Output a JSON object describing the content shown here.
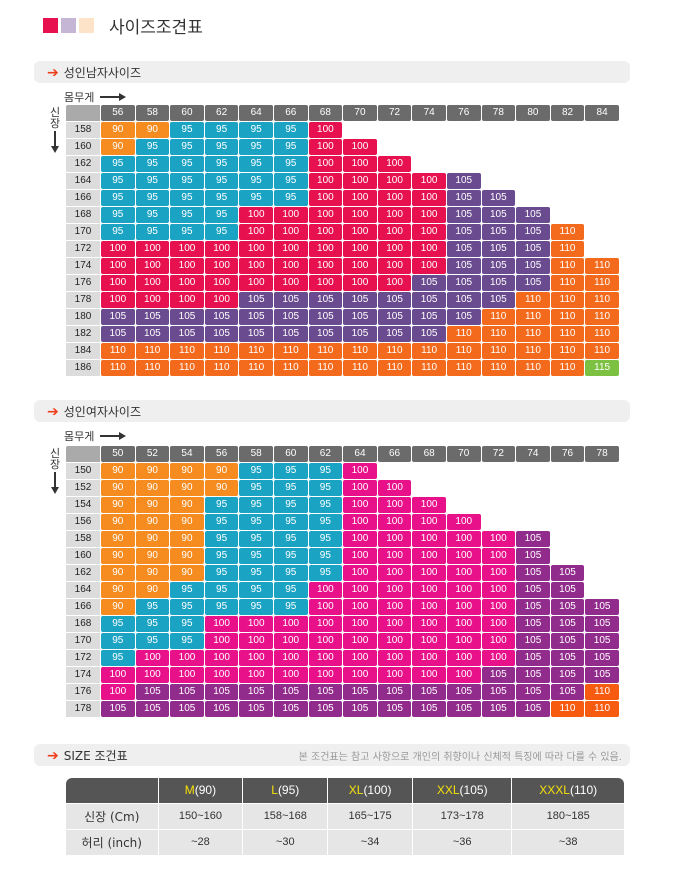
{
  "page_title": "사이즈조견표",
  "title_swatches": [
    "#e8114f",
    "#c4b6d4",
    "#fde3c8"
  ],
  "colors": {
    "90": "#f68b1f",
    "95": "#1ba3c4",
    "100_men": "#e8114f",
    "100_women": "#e8118a",
    "105_men": "#6a4b8f",
    "105_women": "#922c8c",
    "110_men": "#f46a1c",
    "110_women": "#f75b10",
    "115": "#7dc142",
    "header": "#6b6b6b",
    "label": "#dcdcdc",
    "arrow": "#ee3d19"
  },
  "weight_label": "몸무게",
  "height_label": [
    "신",
    "장"
  ],
  "men": {
    "section_title": "성인남자사이즈",
    "weights": [
      "56",
      "58",
      "60",
      "62",
      "64",
      "66",
      "68",
      "70",
      "72",
      "74",
      "76",
      "78",
      "80",
      "82",
      "84"
    ],
    "rows": [
      {
        "height": "158",
        "values": [
          "90",
          "90",
          "95",
          "95",
          "95",
          "95",
          "100"
        ]
      },
      {
        "height": "160",
        "values": [
          "90",
          "95",
          "95",
          "95",
          "95",
          "95",
          "100",
          "100"
        ]
      },
      {
        "height": "162",
        "values": [
          "95",
          "95",
          "95",
          "95",
          "95",
          "95",
          "100",
          "100",
          "100"
        ]
      },
      {
        "height": "164",
        "values": [
          "95",
          "95",
          "95",
          "95",
          "95",
          "95",
          "100",
          "100",
          "100",
          "100",
          "105"
        ]
      },
      {
        "height": "166",
        "values": [
          "95",
          "95",
          "95",
          "95",
          "95",
          "95",
          "100",
          "100",
          "100",
          "100",
          "105",
          "105"
        ]
      },
      {
        "height": "168",
        "values": [
          "95",
          "95",
          "95",
          "95",
          "100",
          "100",
          "100",
          "100",
          "100",
          "100",
          "105",
          "105",
          "105"
        ]
      },
      {
        "height": "170",
        "values": [
          "95",
          "95",
          "95",
          "95",
          "100",
          "100",
          "100",
          "100",
          "100",
          "100",
          "105",
          "105",
          "105",
          "110"
        ]
      },
      {
        "height": "172",
        "values": [
          "100",
          "100",
          "100",
          "100",
          "100",
          "100",
          "100",
          "100",
          "100",
          "100",
          "105",
          "105",
          "105",
          "110"
        ]
      },
      {
        "height": "174",
        "values": [
          "100",
          "100",
          "100",
          "100",
          "100",
          "100",
          "100",
          "100",
          "100",
          "100",
          "105",
          "105",
          "105",
          "110",
          "110"
        ]
      },
      {
        "height": "176",
        "values": [
          "100",
          "100",
          "100",
          "100",
          "100",
          "100",
          "100",
          "100",
          "100",
          "105",
          "105",
          "105",
          "105",
          "110",
          "110"
        ]
      },
      {
        "height": "178",
        "values": [
          "100",
          "100",
          "100",
          "100",
          "105",
          "105",
          "105",
          "105",
          "105",
          "105",
          "105",
          "105",
          "110",
          "110",
          "110"
        ]
      },
      {
        "height": "180",
        "values": [
          "105",
          "105",
          "105",
          "105",
          "105",
          "105",
          "105",
          "105",
          "105",
          "105",
          "105",
          "110",
          "110",
          "110",
          "110"
        ]
      },
      {
        "height": "182",
        "values": [
          "105",
          "105",
          "105",
          "105",
          "105",
          "105",
          "105",
          "105",
          "105",
          "105",
          "110",
          "110",
          "110",
          "110",
          "110"
        ]
      },
      {
        "height": "184",
        "values": [
          "110",
          "110",
          "110",
          "110",
          "110",
          "110",
          "110",
          "110",
          "110",
          "110",
          "110",
          "110",
          "110",
          "110",
          "110"
        ]
      },
      {
        "height": "186",
        "values": [
          "110",
          "110",
          "110",
          "110",
          "110",
          "110",
          "110",
          "110",
          "110",
          "110",
          "110",
          "110",
          "110",
          "110",
          "115"
        ]
      }
    ]
  },
  "women": {
    "section_title": "성인여자사이즈",
    "weights": [
      "50",
      "52",
      "54",
      "56",
      "58",
      "60",
      "62",
      "64",
      "66",
      "68",
      "70",
      "72",
      "74",
      "76",
      "78"
    ],
    "rows": [
      {
        "height": "150",
        "values": [
          "90",
          "90",
          "90",
          "90",
          "95",
          "95",
          "95",
          "100"
        ]
      },
      {
        "height": "152",
        "values": [
          "90",
          "90",
          "90",
          "90",
          "95",
          "95",
          "95",
          "100",
          "100"
        ]
      },
      {
        "height": "154",
        "values": [
          "90",
          "90",
          "90",
          "95",
          "95",
          "95",
          "95",
          "100",
          "100",
          "100"
        ]
      },
      {
        "height": "156",
        "values": [
          "90",
          "90",
          "90",
          "95",
          "95",
          "95",
          "95",
          "100",
          "100",
          "100",
          "100"
        ]
      },
      {
        "height": "158",
        "values": [
          "90",
          "90",
          "90",
          "95",
          "95",
          "95",
          "95",
          "100",
          "100",
          "100",
          "100",
          "100",
          "105"
        ]
      },
      {
        "height": "160",
        "values": [
          "90",
          "90",
          "90",
          "95",
          "95",
          "95",
          "95",
          "100",
          "100",
          "100",
          "100",
          "100",
          "105"
        ]
      },
      {
        "height": "162",
        "values": [
          "90",
          "90",
          "90",
          "95",
          "95",
          "95",
          "95",
          "100",
          "100",
          "100",
          "100",
          "100",
          "105",
          "105"
        ]
      },
      {
        "height": "164",
        "values": [
          "90",
          "90",
          "95",
          "95",
          "95",
          "95",
          "100",
          "100",
          "100",
          "100",
          "100",
          "100",
          "105",
          "105"
        ]
      },
      {
        "height": "166",
        "values": [
          "90",
          "95",
          "95",
          "95",
          "95",
          "95",
          "100",
          "100",
          "100",
          "100",
          "100",
          "100",
          "105",
          "105",
          "105"
        ]
      },
      {
        "height": "168",
        "values": [
          "95",
          "95",
          "95",
          "100",
          "100",
          "100",
          "100",
          "100",
          "100",
          "100",
          "100",
          "100",
          "105",
          "105",
          "105"
        ]
      },
      {
        "height": "170",
        "values": [
          "95",
          "95",
          "95",
          "100",
          "100",
          "100",
          "100",
          "100",
          "100",
          "100",
          "100",
          "100",
          "105",
          "105",
          "105"
        ]
      },
      {
        "height": "172",
        "values": [
          "95",
          "100",
          "100",
          "100",
          "100",
          "100",
          "100",
          "100",
          "100",
          "100",
          "100",
          "100",
          "105",
          "105",
          "105"
        ]
      },
      {
        "height": "174",
        "values": [
          "100",
          "100",
          "100",
          "100",
          "100",
          "100",
          "100",
          "100",
          "100",
          "100",
          "100",
          "105",
          "105",
          "105",
          "105"
        ]
      },
      {
        "height": "176",
        "values": [
          "100",
          "105",
          "105",
          "105",
          "105",
          "105",
          "105",
          "105",
          "105",
          "105",
          "105",
          "105",
          "105",
          "105",
          "110"
        ]
      },
      {
        "height": "178",
        "values": [
          "105",
          "105",
          "105",
          "105",
          "105",
          "105",
          "105",
          "105",
          "105",
          "105",
          "105",
          "105",
          "105",
          "110",
          "110"
        ]
      }
    ]
  },
  "size_table": {
    "section_title": "SIZE 조건표",
    "note": "본 조건표는 참고 사항으로 개인의 취향이나 신체적 특징에 따라 다를 수 있음.",
    "columns": [
      {
        "letter": "M",
        "num": "(90)"
      },
      {
        "letter": "L",
        "num": "(95)"
      },
      {
        "letter": "XL",
        "num": "(100)"
      },
      {
        "letter": "XXL",
        "num": "(105)"
      },
      {
        "letter": "XXXL",
        "num": "(110)"
      }
    ],
    "rows": [
      {
        "label": "신장 (Cm)",
        "values": [
          "150~160",
          "158~168",
          "165~175",
          "173~178",
          "180~185"
        ]
      },
      {
        "label": "허리 (inch)",
        "values": [
          "~28",
          "~30",
          "~34",
          "~36",
          "~38"
        ]
      }
    ]
  }
}
